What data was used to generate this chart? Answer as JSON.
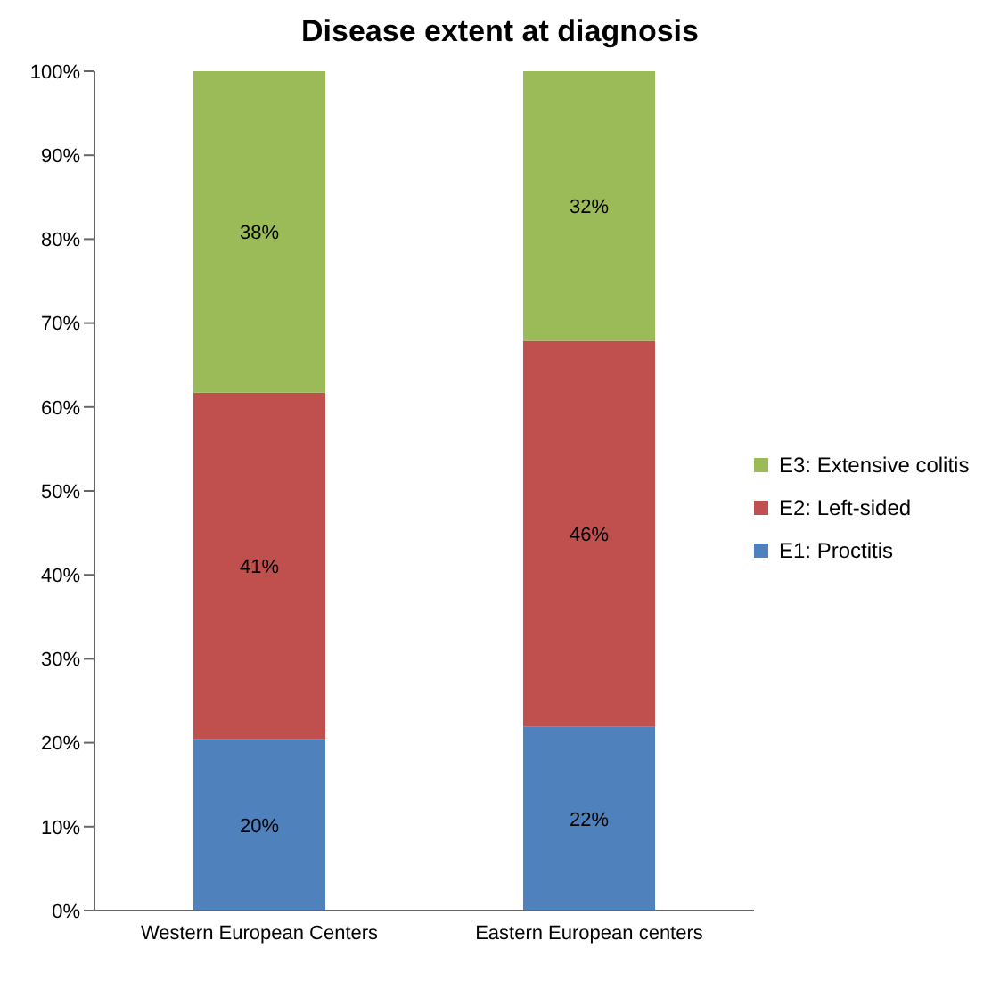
{
  "chart_data": {
    "type": "bar",
    "title": "Disease extent at diagnosis",
    "categories": [
      "Western European Centers",
      "Eastern European centers"
    ],
    "stacked": true,
    "series": [
      {
        "name": "E1: Proctitis",
        "color": "#4f81bd",
        "values": [
          20.4,
          21.9
        ],
        "value_labels": [
          "20%",
          "22%"
        ]
      },
      {
        "name": "E2: Left-sided",
        "color": "#c0504d",
        "values": [
          41.3,
          46
        ],
        "value_labels": [
          "41%",
          "46%"
        ]
      },
      {
        "name": "E3: Extensive colitis",
        "color": "#9bbb59",
        "values": [
          38.3,
          32.1
        ],
        "value_labels": [
          "38%",
          "32%"
        ]
      }
    ],
    "ylim": [
      0,
      100
    ],
    "yticks": [
      {
        "value": 0,
        "label": "0%"
      },
      {
        "value": 10,
        "label": "10%"
      },
      {
        "value": 20,
        "label": "20%"
      },
      {
        "value": 30,
        "label": "30%"
      },
      {
        "value": 40,
        "label": "40%"
      },
      {
        "value": 50,
        "label": "50%"
      },
      {
        "value": 60,
        "label": "60%"
      },
      {
        "value": 70,
        "label": "70%"
      },
      {
        "value": 80,
        "label": "80%"
      },
      {
        "value": 90,
        "label": "90%"
      },
      {
        "value": 100,
        "label": "100%"
      }
    ],
    "legend": "right"
  }
}
